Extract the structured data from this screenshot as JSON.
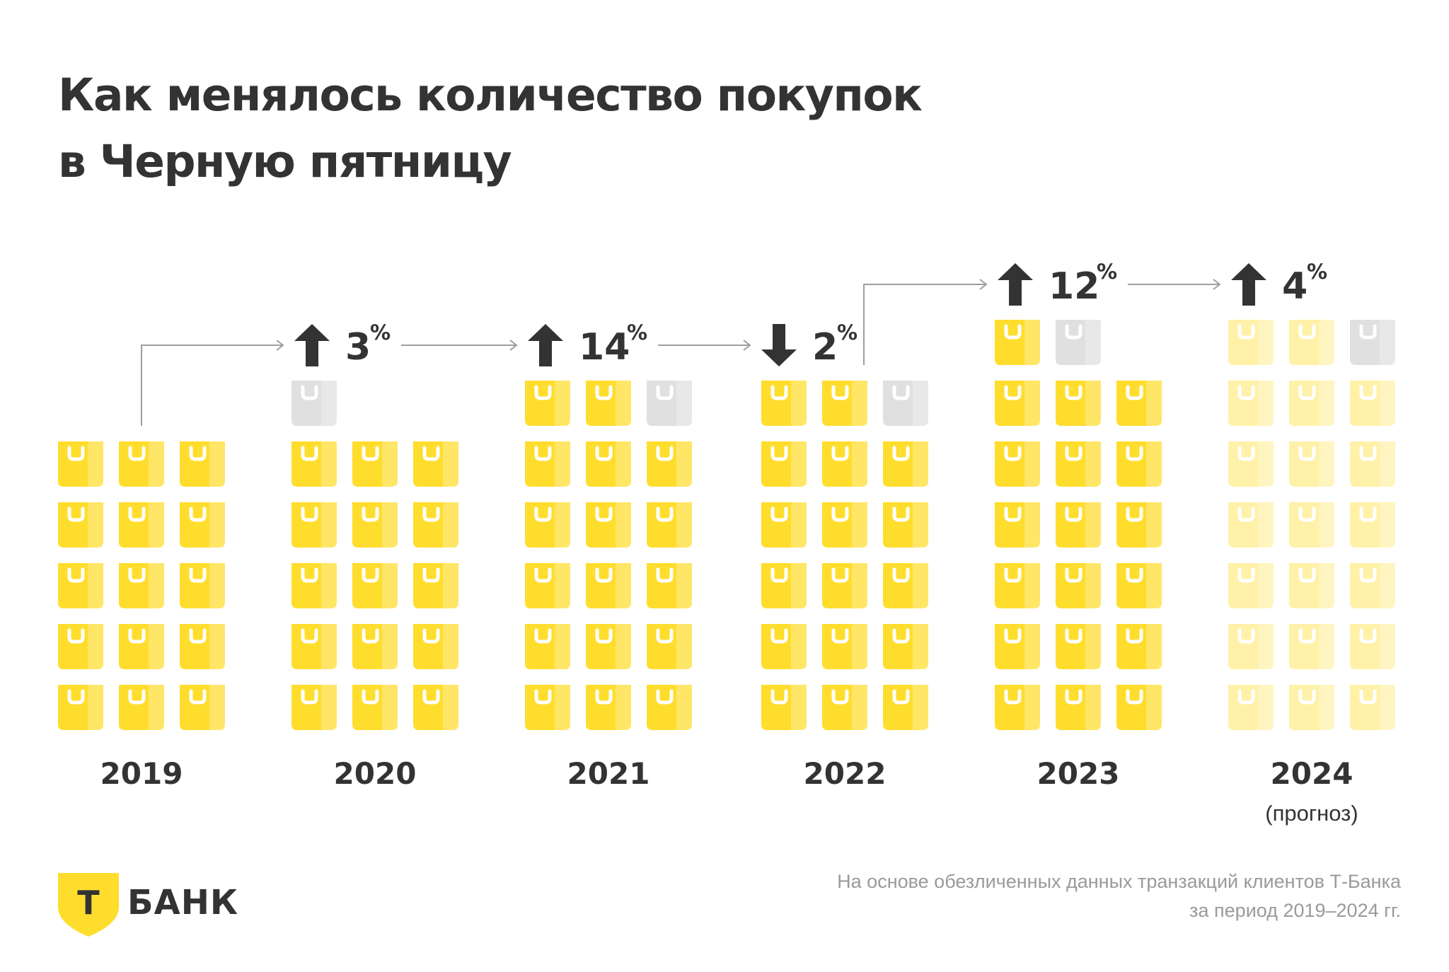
{
  "title_lines": [
    "Как менялось количество покупок",
    "в Черную пятницу"
  ],
  "colors": {
    "bag": "#FFDD2D",
    "bag_light": "#FFE873",
    "bag_faded": "#FFF1A8",
    "bag_empty": "#E0E0E0",
    "text": "#333333",
    "connector": "#9E9E9E"
  },
  "chart_data": {
    "type": "pictogram",
    "unit_note": "",
    "categories": [
      "2019",
      "2020",
      "2021",
      "2022",
      "2023",
      "2024"
    ],
    "bag_counts": [
      15,
      15.5,
      17.67,
      17.33,
      19.5,
      20.33
    ],
    "changes": [
      {
        "from": "2019",
        "to": "2020",
        "direction": "up",
        "value": "3",
        "sign": "%"
      },
      {
        "from": "2020",
        "to": "2021",
        "direction": "up",
        "value": "14",
        "sign": "%"
      },
      {
        "from": "2021",
        "to": "2022",
        "direction": "down",
        "value": "2",
        "sign": "%"
      },
      {
        "from": "2022",
        "to": "2023",
        "direction": "up",
        "value": "12",
        "sign": "%"
      },
      {
        "from": "2023",
        "to": "2024",
        "direction": "up",
        "value": "4",
        "sign": "%"
      }
    ],
    "forecast": {
      "year": "2024",
      "label": "(прогноз)"
    }
  },
  "brand": {
    "name": "БАНК",
    "badge_letter": "Т"
  },
  "footnote_lines": [
    "На основе обезличенных данных транзакций клиентов Т-Банка",
    "за период 2019–2024 гг."
  ]
}
